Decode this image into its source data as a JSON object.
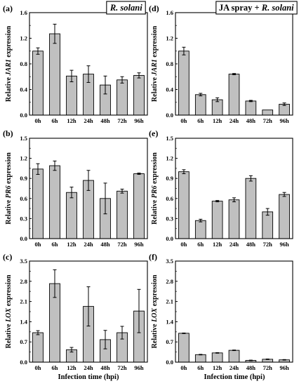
{
  "colors": {
    "bar_fill": "#c0c0c0",
    "bar_edge": "#000000",
    "axis": "#000000"
  },
  "x_axis_label": "Infection time (hpi)",
  "chart_data": [
    {
      "type": "bar",
      "panel_label": "(a)",
      "title": "R. solani",
      "title_italic_parts": [
        true
      ],
      "ylabel": [
        "Relative ",
        "JAR1",
        " expression"
      ],
      "categories": [
        "0h",
        "6h",
        "12h",
        "24h",
        "48h",
        "72h",
        "96h"
      ],
      "values": [
        1.0,
        1.27,
        0.61,
        0.64,
        0.47,
        0.55,
        0.62
      ],
      "errors": [
        0.05,
        0.15,
        0.09,
        0.13,
        0.14,
        0.05,
        0.04
      ],
      "ylim": [
        0,
        1.6
      ],
      "yticks": [
        "0.0",
        "0.4",
        "0.8",
        "1.2",
        "1.6"
      ]
    },
    {
      "type": "bar",
      "panel_label": "(d)",
      "title": [
        "JA spray + ",
        "R. solani"
      ],
      "ylabel": [
        "Relative ",
        "JAR1",
        " expression"
      ],
      "categories": [
        "0h",
        "6h",
        "12h",
        "24h",
        "48h",
        "72h",
        "96h"
      ],
      "values": [
        1.0,
        0.32,
        0.24,
        0.64,
        0.22,
        0.08,
        0.17
      ],
      "errors": [
        0.06,
        0.02,
        0.03,
        0.01,
        0.01,
        0.0,
        0.02
      ],
      "ylim": [
        0,
        1.6
      ],
      "yticks": [
        "0.0",
        "0.4",
        "0.8",
        "1.2",
        "1.6"
      ]
    },
    {
      "type": "bar",
      "panel_label": "(b)",
      "title": "",
      "ylabel": [
        "Relative ",
        "PR6",
        " expression"
      ],
      "categories": [
        "0h",
        "6h",
        "12h",
        "24h",
        "48h",
        "72h",
        "96h"
      ],
      "values": [
        1.04,
        1.09,
        0.69,
        0.87,
        0.6,
        0.71,
        0.97
      ],
      "errors": [
        0.08,
        0.07,
        0.08,
        0.15,
        0.23,
        0.03,
        0.01
      ],
      "ylim": [
        0,
        1.5
      ],
      "yticks": [
        "0.0",
        "0.3",
        "0.6",
        "0.9",
        "1.2",
        "1.5"
      ]
    },
    {
      "type": "bar",
      "panel_label": "(e)",
      "title": "",
      "ylabel": [
        "Relative ",
        "PR6",
        " expression"
      ],
      "categories": [
        "0h",
        "6h",
        "12h",
        "24h",
        "48h",
        "72h",
        "96h"
      ],
      "values": [
        1.0,
        0.27,
        0.56,
        0.58,
        0.9,
        0.4,
        0.66
      ],
      "errors": [
        0.03,
        0.02,
        0.01,
        0.03,
        0.04,
        0.05,
        0.03
      ],
      "ylim": [
        0,
        1.5
      ],
      "yticks": [
        "0.0",
        "0.3",
        "0.6",
        "0.9",
        "1.2",
        "1.5"
      ]
    },
    {
      "type": "bar",
      "panel_label": "(c)",
      "title": "",
      "ylabel": [
        "Relative ",
        "LOX",
        " expression"
      ],
      "categories": [
        "0h",
        "6h",
        "12h",
        "24h",
        "48h",
        "72h",
        "96h"
      ],
      "values": [
        1.02,
        2.72,
        0.43,
        1.93,
        0.78,
        1.02,
        1.77
      ],
      "errors": [
        0.07,
        0.48,
        0.08,
        0.68,
        0.32,
        0.22,
        0.75
      ],
      "ylim": [
        0,
        3.5
      ],
      "yticks": [
        "0.0",
        "0.7",
        "1.4",
        "2.1",
        "2.8",
        "3.5"
      ]
    },
    {
      "type": "bar",
      "panel_label": "(f)",
      "title": "",
      "ylabel": [
        "Relative ",
        "LOX",
        " expression"
      ],
      "categories": [
        "0h",
        "6h",
        "12h",
        "24h",
        "48h",
        "72h",
        "96h"
      ],
      "values": [
        1.0,
        0.26,
        0.32,
        0.41,
        0.06,
        0.1,
        0.08
      ],
      "errors": [
        0.01,
        0.01,
        0.01,
        0.01,
        0.01,
        0.01,
        0.01
      ],
      "ylim": [
        0,
        3.5
      ],
      "yticks": [
        "0.0",
        "0.7",
        "1.4",
        "2.1",
        "2.8",
        "3.5"
      ]
    }
  ]
}
